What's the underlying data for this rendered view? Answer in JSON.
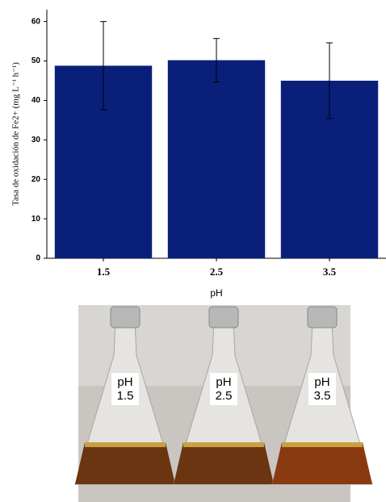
{
  "chart_data": {
    "type": "bar",
    "y_label": "Tasa de oxidación de Fe2+ (mg L⁻¹ h⁻¹)",
    "x_label": "pH",
    "categories": [
      "1.5",
      "2.5",
      "3.5"
    ],
    "values": [
      48.8,
      50.2,
      45
    ],
    "errors": [
      11.2,
      5.5,
      9.6
    ],
    "color": "#0a1f7a",
    "ylim": [
      0,
      63
    ],
    "yticks": [
      0,
      10,
      20,
      30,
      40,
      50,
      60
    ]
  },
  "photo": {
    "labels": [
      [
        "pH",
        "1.5"
      ],
      [
        "pH",
        "2.5"
      ],
      [
        "pH",
        "3.5"
      ]
    ]
  }
}
